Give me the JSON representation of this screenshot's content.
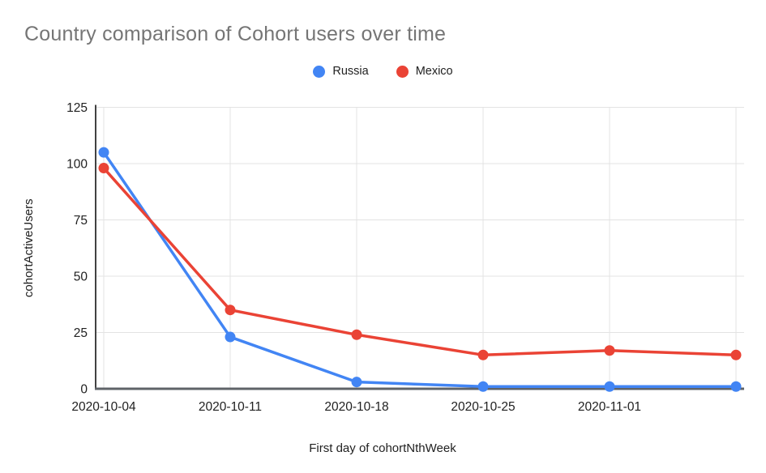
{
  "title": "Country comparison of Cohort users over time",
  "legend": [
    {
      "label": "Russia",
      "color": "#4285F4"
    },
    {
      "label": "Mexico",
      "color": "#EA4335"
    }
  ],
  "chart_data": {
    "type": "line",
    "title": "Country comparison of Cohort users over time",
    "xlabel": "First day of cohortNthWeek",
    "ylabel": "cohortActiveUsers",
    "categories": [
      "2020-10-04",
      "2020-10-11",
      "2020-10-18",
      "2020-10-25",
      "2020-11-01",
      ""
    ],
    "series": [
      {
        "name": "Russia",
        "color": "#4285F4",
        "values": [
          105,
          23,
          3,
          1,
          1,
          1
        ]
      },
      {
        "name": "Mexico",
        "color": "#EA4335",
        "values": [
          98,
          35,
          24,
          15,
          17,
          15
        ]
      }
    ],
    "y_ticks": [
      0,
      25,
      50,
      75,
      100,
      125
    ],
    "ylim": [
      0,
      125
    ],
    "grid": true,
    "legend_position": "top",
    "marker": "circle"
  },
  "colors": {
    "title_text": "#757575",
    "tick_text": "#212121",
    "gridline": "#e3e3e3",
    "y_axis_line": "#424242",
    "x_axis_line": "#5f6368",
    "background": "#ffffff"
  }
}
